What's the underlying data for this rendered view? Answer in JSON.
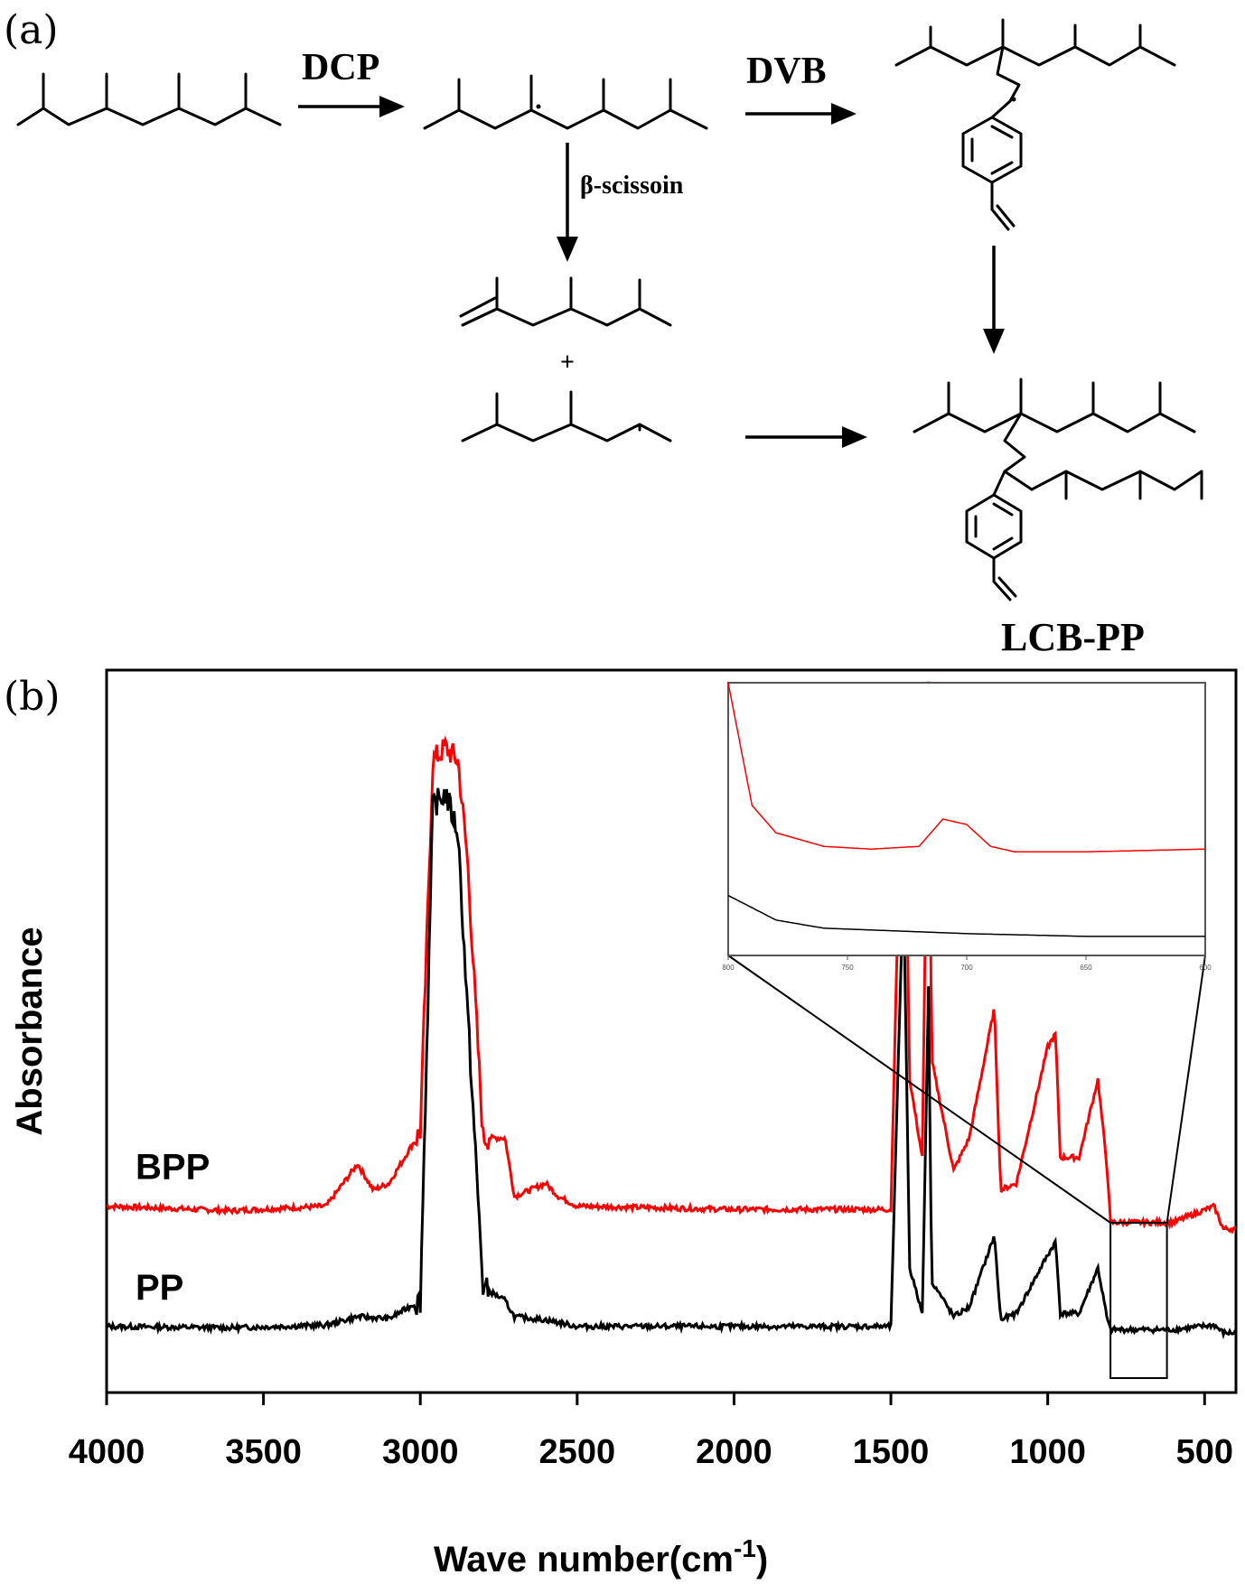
{
  "panel_a": {
    "label": "(a)",
    "reagent_1": "DCP",
    "reagent_2": "DVB",
    "side_reaction": "β-scissoin",
    "plus_sign": "+",
    "product": "LCB-PP"
  },
  "panel_b": {
    "label": "(b)"
  },
  "chart_data": {
    "type": "line",
    "title": "",
    "xlabel": "Wave number(cm",
    "xlabel_sup": "-1",
    "xlabel_close": ")",
    "ylabel": "Absorbance",
    "xlim": [
      4000,
      400
    ],
    "x_reversed": true,
    "x_ticks": [
      "4000",
      "3500",
      "3000",
      "2500",
      "2000",
      "1500",
      "1000",
      "500"
    ],
    "y_ticks_shown": false,
    "colors": {
      "BPP": "#ff0000",
      "PP": "#000000"
    },
    "series": [
      {
        "name": "BPP",
        "color": "#ff0000",
        "baseline": 0.245,
        "x": [
          4000,
          3600,
          3300,
          3200,
          3150,
          3100,
          3000,
          2960,
          2920,
          2880,
          2850,
          2800,
          2730,
          2700,
          2600,
          2560,
          2500,
          2000,
          1500,
          1460,
          1440,
          1400,
          1380,
          1370,
          1300,
          1250,
          1170,
          1150,
          1100,
          1000,
          975,
          960,
          900,
          840,
          810,
          800,
          700,
          600,
          470,
          440,
          400
        ],
        "y": [
          0.245,
          0.238,
          0.245,
          0.31,
          0.27,
          0.28,
          0.36,
          0.93,
          0.95,
          0.93,
          0.78,
          0.35,
          0.35,
          0.26,
          0.28,
          0.26,
          0.245,
          0.24,
          0.24,
          1.05,
          0.44,
          0.32,
          1.05,
          0.47,
          0.3,
          0.35,
          0.55,
          0.27,
          0.28,
          0.49,
          0.51,
          0.32,
          0.32,
          0.44,
          0.3,
          0.22,
          0.22,
          0.22,
          0.245,
          0.21,
          0.21
        ]
      },
      {
        "name": "PP",
        "color": "#000000",
        "baseline": 0.06,
        "x": [
          4000,
          3600,
          3300,
          3200,
          3100,
          3000,
          2960,
          2920,
          2880,
          2850,
          2800,
          2730,
          2700,
          2600,
          2500,
          2000,
          1500,
          1460,
          1440,
          1400,
          1380,
          1370,
          1300,
          1250,
          1170,
          1150,
          1100,
          1000,
          975,
          960,
          900,
          840,
          810,
          800,
          700,
          600,
          470,
          440,
          400
        ],
        "y": [
          0.06,
          0.058,
          0.062,
          0.075,
          0.072,
          0.1,
          0.86,
          0.88,
          0.82,
          0.55,
          0.12,
          0.1,
          0.075,
          0.07,
          0.06,
          0.06,
          0.06,
          0.75,
          0.15,
          0.08,
          0.58,
          0.13,
          0.075,
          0.09,
          0.2,
          0.07,
          0.08,
          0.17,
          0.19,
          0.08,
          0.08,
          0.15,
          0.07,
          0.055,
          0.055,
          0.055,
          0.062,
          0.05,
          0.05
        ]
      }
    ],
    "inset": {
      "x_ticks": [
        "800",
        "750",
        "700",
        "650",
        "600"
      ],
      "xlim": [
        800,
        600
      ],
      "series": [
        {
          "name": "BPP",
          "color": "#ff0000",
          "x": [
            800,
            790,
            780,
            760,
            740,
            720,
            710,
            700,
            690,
            680,
            650,
            600
          ],
          "y": [
            1.0,
            0.55,
            0.45,
            0.4,
            0.39,
            0.4,
            0.5,
            0.48,
            0.4,
            0.38,
            0.38,
            0.39
          ]
        },
        {
          "name": "PP",
          "color": "#000000",
          "x": [
            800,
            780,
            760,
            700,
            650,
            600
          ],
          "y": [
            0.22,
            0.13,
            0.1,
            0.08,
            0.07,
            0.07
          ]
        }
      ]
    }
  }
}
